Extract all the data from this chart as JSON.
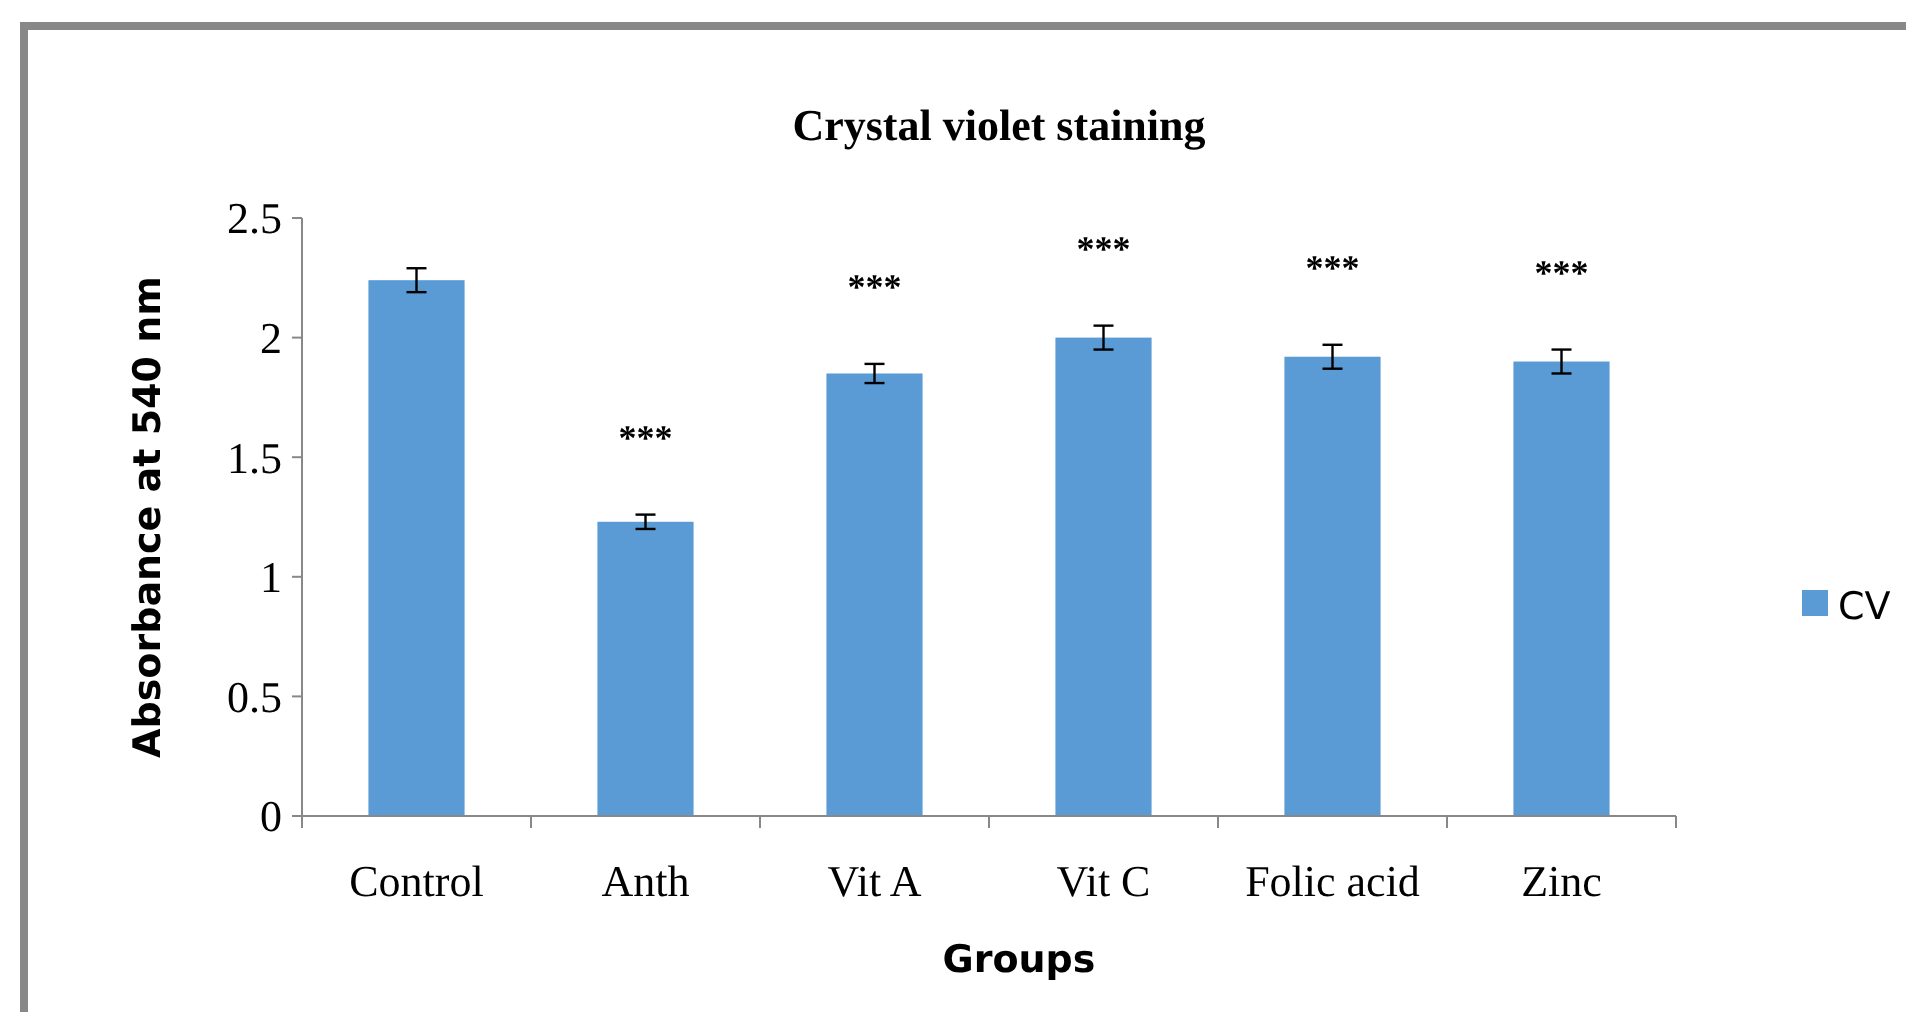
{
  "chart_data": {
    "type": "bar",
    "title": "Crystal violet staining",
    "xlabel": "Groups",
    "ylabel": "Absorbance at 540 nm",
    "categories": [
      "Control",
      "Anth",
      "Vit A",
      "Vit C",
      "Folic acid",
      "Zinc"
    ],
    "series": [
      {
        "name": "CV",
        "color": "#5b9bd5",
        "values": [
          2.24,
          1.23,
          1.85,
          2.0,
          1.92,
          1.9
        ],
        "errors": [
          0.05,
          0.03,
          0.04,
          0.05,
          0.05,
          0.05
        ]
      }
    ],
    "ylim": [
      0,
      2.5
    ],
    "yticks": [
      0,
      0.5,
      1,
      1.5,
      2,
      2.5
    ],
    "grid": false,
    "legend": "right",
    "annotations": [
      "***",
      "***",
      "***",
      "***",
      "***"
    ]
  }
}
